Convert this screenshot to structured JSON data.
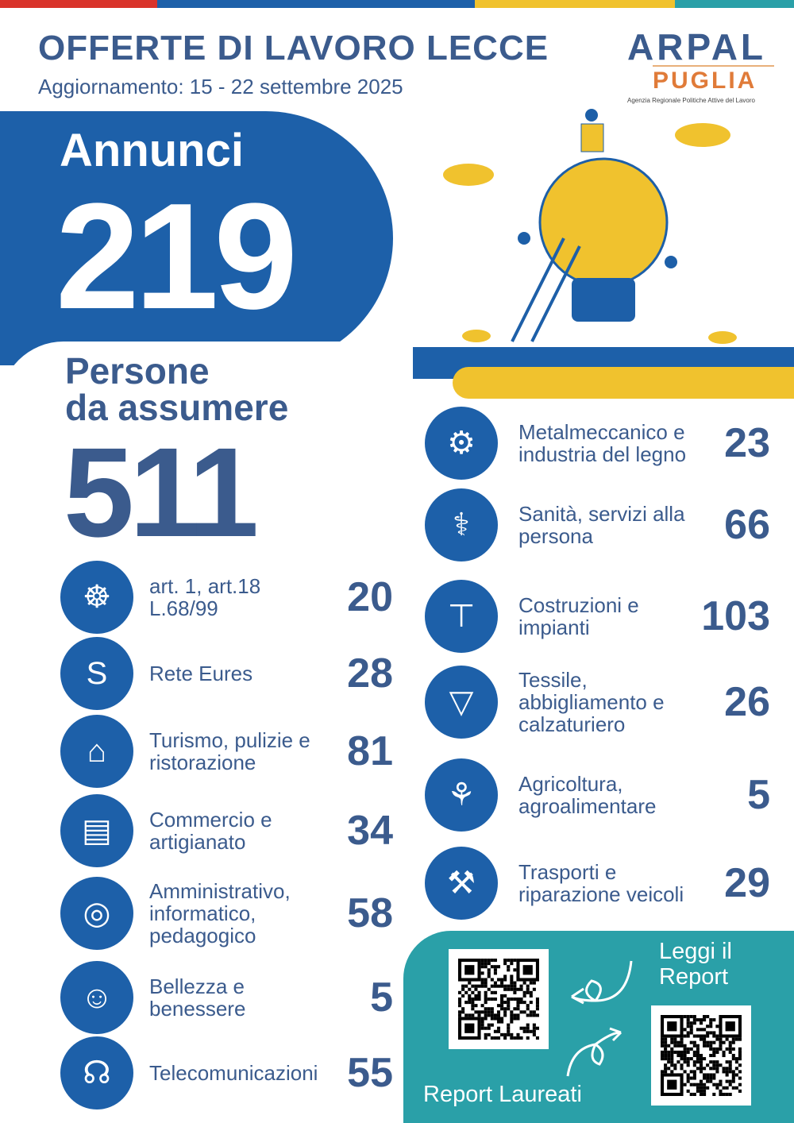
{
  "header": {
    "title": "OFFERTE DI LAVORO LECCE",
    "update": "Aggiornamento: 15 - 22 settembre 2025"
  },
  "logo": {
    "line1": "ARPAL",
    "line2": "PUGLIA",
    "agency": "Agenzia Regionale Politiche Attive del Lavoro"
  },
  "annunci": {
    "label": "Annunci",
    "value": "219"
  },
  "persone": {
    "label1": "Persone",
    "label2": "da assumere",
    "value": "511"
  },
  "left": [
    {
      "icon": "accessibility-icon",
      "label": "art. 1, art.18 L.68/99",
      "value": "20"
    },
    {
      "icon": "eures-logo-icon",
      "label": "Rete Eures",
      "value": "28"
    },
    {
      "icon": "beach-house-icon",
      "label": "Turismo, pulizie e ristorazione",
      "value": "81"
    },
    {
      "icon": "market-stall-icon",
      "label": "Commercio e artigianato",
      "value": "34"
    },
    {
      "icon": "globe-book-icon",
      "label": "Amministrativo, informatico, pedagogico",
      "value": "58"
    },
    {
      "icon": "face-icon",
      "label": "Bellezza e benessere",
      "value": "5"
    },
    {
      "icon": "headset-icon",
      "label": "Telecomunicazioni",
      "value": "55"
    }
  ],
  "right": [
    {
      "icon": "gear-wrench-icon",
      "label": "Metalmeccanico e industria del legno",
      "value": "23"
    },
    {
      "icon": "stethoscope-icon",
      "label": "Sanità, servizi alla persona",
      "value": "66"
    },
    {
      "icon": "crane-icon",
      "label": "Costruzioni e impianti",
      "value": "103"
    },
    {
      "icon": "tshirt-shoe-icon",
      "label": "Tessile, abbigliamento e calzaturiero",
      "value": "26"
    },
    {
      "icon": "wheat-icon",
      "label": "Agricoltura, agroalimentare",
      "value": "5"
    },
    {
      "icon": "tools-icon",
      "label": "Trasporti e riparazione veicoli",
      "value": "29"
    }
  ],
  "report": {
    "read": "Leggi il Report",
    "graduates": "Report Laureati"
  },
  "colors": {
    "blue": "#1d60a9",
    "navy": "#3b5b8d",
    "yellow": "#f0c22e",
    "teal": "#2aa0a8",
    "orange": "#e07b39"
  }
}
